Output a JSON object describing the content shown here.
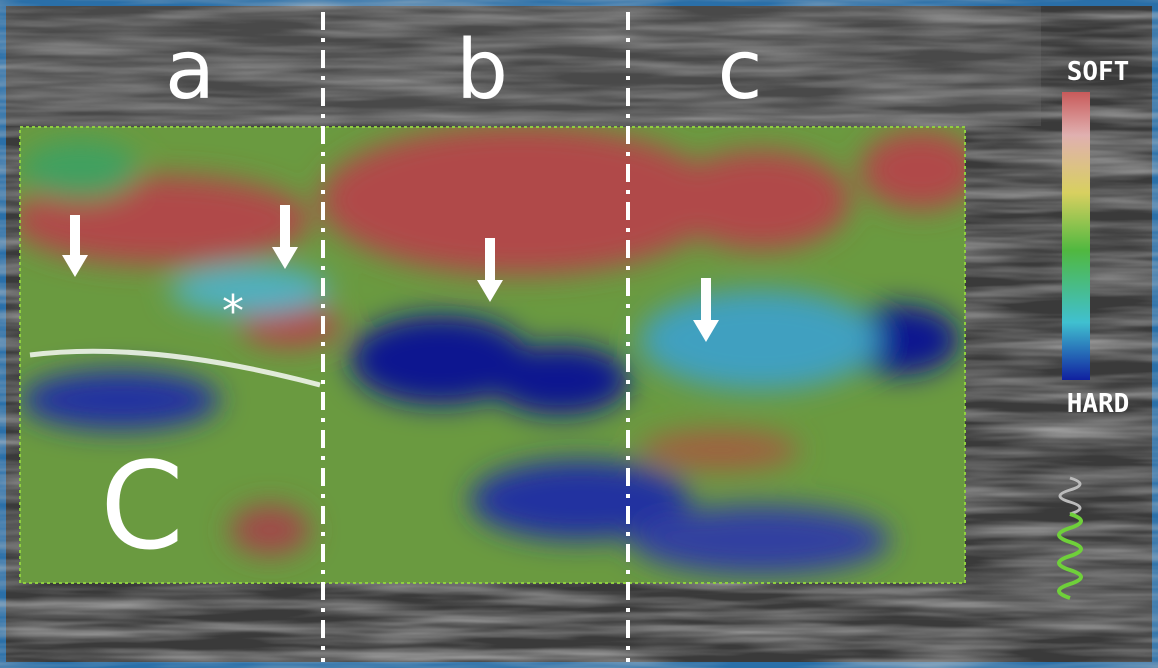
{
  "labels": {
    "zone_a": "a",
    "zone_b": "b",
    "zone_c": "c",
    "region": "C",
    "marker": "*"
  },
  "scale": {
    "top": "SOFT",
    "bottom": "HARD"
  }
}
